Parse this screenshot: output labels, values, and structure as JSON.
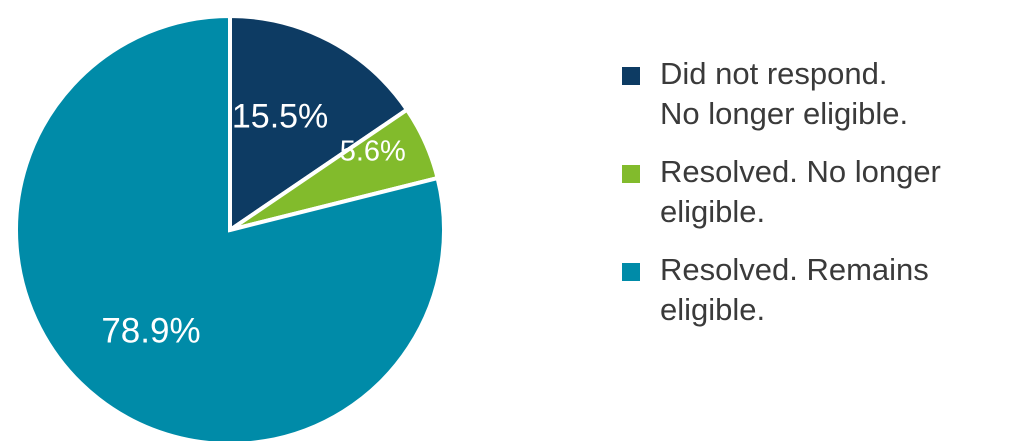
{
  "chart_data": {
    "type": "pie",
    "title": "",
    "slices": [
      {
        "name": "Did not respond.\nNo longer eligible.",
        "value": 15.5,
        "label": "15.5%",
        "color": "#0d3b63"
      },
      {
        "name": "Resolved. No longer\neligible.",
        "value": 5.6,
        "label": "5.6%",
        "color": "#82bb2c"
      },
      {
        "name": "Resolved. Remains\neligible.",
        "value": 78.9,
        "label": "78.9%",
        "color": "#008ba8"
      }
    ],
    "start_angle_deg": 0,
    "direction": "clockwise",
    "legend_position": "right"
  }
}
